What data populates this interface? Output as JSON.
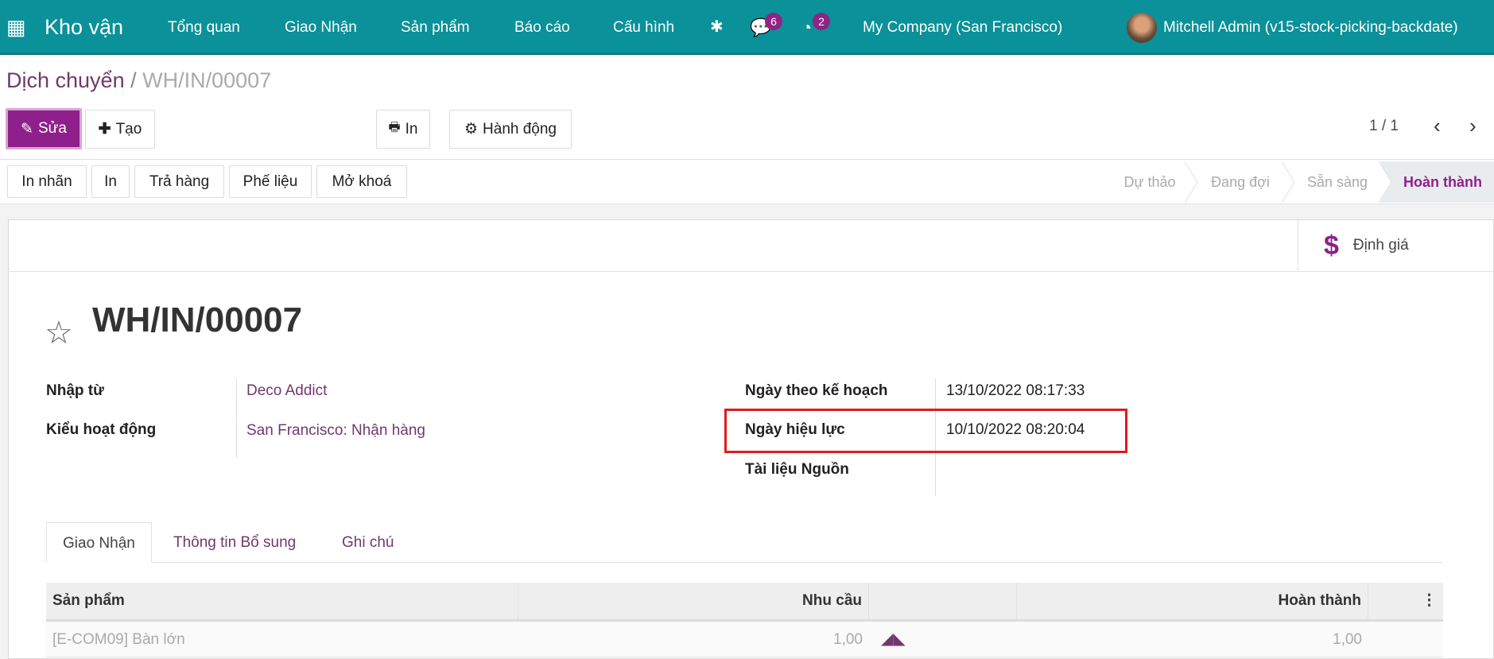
{
  "navbar": {
    "app_title": "Kho vận",
    "menu": [
      "Tổng quan",
      "Giao Nhận",
      "Sản phẩm",
      "Báo cáo",
      "Cấu hình"
    ],
    "messages_count": "6",
    "activities_count": "2",
    "company": "My Company (San Francisco)",
    "user": "Mitchell Admin (v15-stock-picking-backdate)",
    "color": "#0a9199"
  },
  "breadcrumb": {
    "parent": "Dịch chuyển",
    "separator": "/",
    "current": "WH/IN/00007"
  },
  "control": {
    "edit": "Sửa",
    "create": "Tạo",
    "print": "In",
    "action": "Hành động",
    "pager": "1 / 1"
  },
  "statusbar": {
    "buttons": [
      "In nhãn",
      "In",
      "Trả hàng",
      "Phế liệu",
      "Mở khoá"
    ],
    "stages": [
      "Dự thảo",
      "Đang đợi",
      "Sẵn sàng",
      "Hoàn thành"
    ],
    "active_stage": "Hoàn thành"
  },
  "button_box": {
    "valuation": "Định giá"
  },
  "record": {
    "name": "WH/IN/00007",
    "starred": false
  },
  "fields": {
    "partner": {
      "label": "Nhập từ",
      "value": "Deco Addict"
    },
    "operation_type": {
      "label": "Kiểu hoạt động",
      "value": "San Francisco: Nhận hàng"
    },
    "scheduled_date": {
      "label": "Ngày theo kế hoạch",
      "value": "13/10/2022 08:17:33"
    },
    "effective_date": {
      "label": "Ngày hiệu lực",
      "value": "10/10/2022 08:20:04"
    },
    "origin": {
      "label": "Tài liệu Nguồn",
      "value": ""
    }
  },
  "tabs": [
    "Giao Nhận",
    "Thông tin Bổ sung",
    "Ghi chú"
  ],
  "active_tab": "Giao Nhận",
  "table": {
    "headers": [
      "Sản phẩm",
      "Nhu cầu",
      "Hoàn thành"
    ],
    "rows": [
      {
        "product": "[E-COM09] Bàn lớn",
        "demand": "1,00",
        "done": "1,00"
      }
    ]
  },
  "highlight_color": "#e01b1b",
  "accent": "#8f1f8a"
}
